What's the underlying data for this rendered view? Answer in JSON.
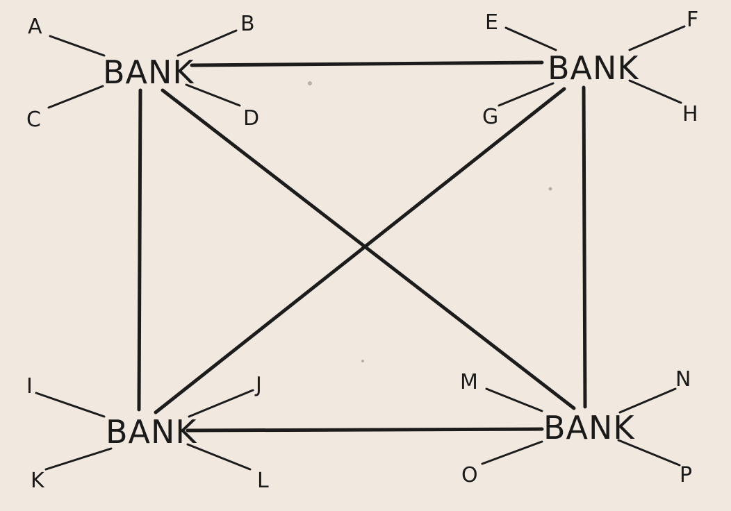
{
  "banks": [
    {
      "id": "top-left",
      "label": "BANK",
      "clients": [
        "A",
        "B",
        "C",
        "D"
      ]
    },
    {
      "id": "top-right",
      "label": "BANK",
      "clients": [
        "E",
        "F",
        "G",
        "H"
      ]
    },
    {
      "id": "bottom-left",
      "label": "BANK",
      "clients": [
        "I",
        "J",
        "K",
        "L"
      ]
    },
    {
      "id": "bottom-right",
      "label": "BANK",
      "clients": [
        "M",
        "N",
        "O",
        "P"
      ]
    }
  ],
  "connections": [
    [
      "top-left",
      "top-right"
    ],
    [
      "top-left",
      "bottom-left"
    ],
    [
      "top-left",
      "bottom-right"
    ],
    [
      "top-right",
      "bottom-left"
    ],
    [
      "top-right",
      "bottom-right"
    ],
    [
      "bottom-left",
      "bottom-right"
    ]
  ]
}
